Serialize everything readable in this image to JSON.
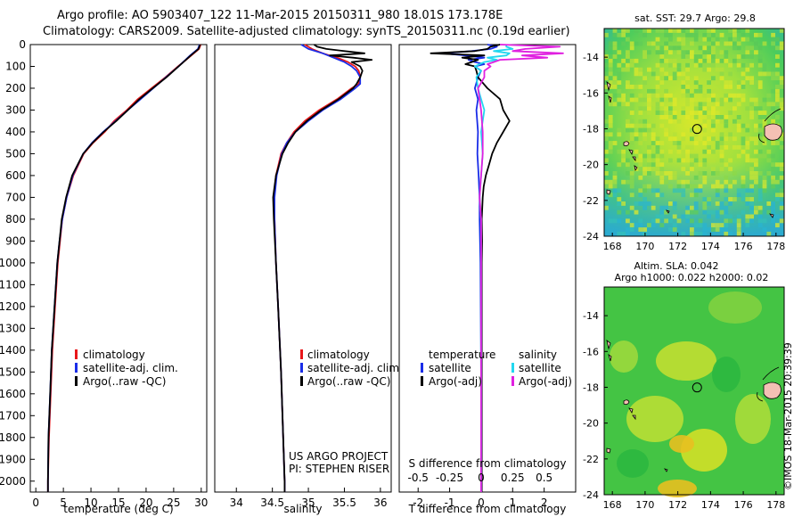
{
  "header": {
    "line1": "Argo profile: AO 5903407_122 11-Mar-2015 20150311_980 18.01S 173.178E",
    "line2": "Climatology: CARS2009. Satellite-adjusted climatology: synTS_20150311.nc (0.19d earlier)"
  },
  "colors": {
    "climatology": "#e8171a",
    "satellite": "#1a2de8",
    "argo": "#000000",
    "sat_salinity": "#22d8f0",
    "argo_salinity": "#e020e0"
  },
  "depth_axis": {
    "ylim": [
      0,
      2050
    ],
    "ticks": [
      0,
      100,
      200,
      300,
      400,
      500,
      600,
      700,
      800,
      900,
      1000,
      1100,
      1200,
      1300,
      1400,
      1500,
      1600,
      1700,
      1800,
      1900,
      2000
    ]
  },
  "chart_data": [
    {
      "type": "line",
      "name": "temperature",
      "xlabel": "temperature (deg C)",
      "xlim": [
        -1,
        31
      ],
      "xticks": [
        0,
        5,
        10,
        15,
        20,
        25,
        30
      ],
      "legend": [
        "climatology",
        "satellite-adj. clim.",
        "Argo(..raw -QC)"
      ],
      "series": [
        {
          "key": "climatology",
          "y": [
            0,
            20,
            50,
            100,
            150,
            200,
            250,
            300,
            350,
            400,
            450,
            500,
            600,
            700,
            800,
            900,
            1000,
            1200,
            1400,
            1600,
            1800,
            2000,
            2050
          ],
          "x": [
            29.9,
            29.6,
            28.2,
            25.8,
            23.5,
            21.0,
            18.5,
            16.5,
            14.2,
            12.5,
            10.4,
            8.7,
            6.8,
            5.6,
            4.8,
            4.4,
            4.0,
            3.5,
            3.0,
            2.7,
            2.4,
            2.2,
            2.2
          ]
        },
        {
          "key": "satellite",
          "y": [
            0,
            20,
            50,
            100,
            150,
            200,
            250,
            300,
            350,
            400,
            450,
            500,
            600,
            700,
            800,
            900,
            1000,
            1200,
            1400,
            1600,
            1800,
            2000,
            2050
          ],
          "x": [
            29.7,
            29.4,
            28.0,
            25.9,
            23.6,
            21.3,
            19.0,
            16.7,
            14.5,
            12.2,
            10.2,
            8.6,
            6.7,
            5.6,
            4.8,
            4.3,
            3.9,
            3.4,
            2.9,
            2.6,
            2.3,
            2.2,
            2.2
          ]
        },
        {
          "key": "argo",
          "y": [
            0,
            20,
            50,
            100,
            150,
            200,
            250,
            300,
            350,
            400,
            450,
            500,
            600,
            700,
            800,
            900,
            1000,
            1200,
            1400,
            1600,
            1800,
            2000,
            2050
          ],
          "x": [
            29.8,
            29.5,
            28.1,
            25.9,
            23.7,
            21.2,
            18.8,
            16.7,
            14.6,
            12.3,
            10.3,
            8.6,
            6.6,
            5.5,
            4.7,
            4.3,
            3.9,
            3.4,
            2.9,
            2.6,
            2.3,
            2.2,
            2.2
          ]
        }
      ]
    },
    {
      "type": "line",
      "name": "salinity",
      "xlabel": "salinity",
      "xlim": [
        33.7,
        36.15
      ],
      "xticks": [
        34,
        34.5,
        35,
        35.5,
        36
      ],
      "legend": [
        "climatology",
        "satellite-adj. clim.",
        "Argo(..raw -QC)"
      ],
      "series": [
        {
          "key": "climatology",
          "y": [
            0,
            20,
            40,
            60,
            80,
            100,
            120,
            150,
            180,
            200,
            250,
            300,
            350,
            400,
            450,
            500,
            600,
            700,
            800,
            1000,
            1200,
            1500,
            1800,
            2000,
            2050
          ],
          "x": [
            34.95,
            35.05,
            35.2,
            35.4,
            35.55,
            35.65,
            35.7,
            35.72,
            35.7,
            35.6,
            35.4,
            35.15,
            34.95,
            34.8,
            34.7,
            34.62,
            34.55,
            34.52,
            34.53,
            34.55,
            34.58,
            34.62,
            34.65,
            34.67,
            34.67
          ]
        },
        {
          "key": "satellite",
          "y": [
            0,
            20,
            40,
            60,
            80,
            100,
            120,
            150,
            180,
            200,
            250,
            300,
            350,
            400,
            450,
            500,
            600,
            700,
            800,
            1000,
            1200,
            1500,
            1800,
            2000,
            2050
          ],
          "x": [
            34.9,
            35.0,
            35.2,
            35.35,
            35.5,
            35.6,
            35.67,
            35.72,
            35.72,
            35.65,
            35.45,
            35.2,
            35.0,
            34.82,
            34.7,
            34.63,
            34.56,
            34.53,
            34.53,
            34.55,
            34.58,
            34.62,
            34.65,
            34.67,
            34.67
          ]
        },
        {
          "key": "argo",
          "y": [
            0,
            10,
            20,
            30,
            40,
            50,
            60,
            70,
            80,
            90,
            100,
            120,
            150,
            180,
            200,
            250,
            300,
            350,
            400,
            450,
            500,
            600,
            700,
            800,
            1000,
            1200,
            1500,
            1800,
            2000,
            2050
          ],
          "x": [
            35.08,
            35.12,
            35.25,
            35.5,
            35.78,
            35.3,
            35.62,
            35.88,
            35.6,
            35.66,
            35.72,
            35.75,
            35.72,
            35.67,
            35.62,
            35.42,
            35.18,
            34.98,
            34.82,
            34.72,
            34.64,
            34.55,
            34.51,
            34.52,
            34.55,
            34.58,
            34.62,
            34.65,
            34.67,
            34.67
          ]
        }
      ],
      "annotations": [
        "US ARGO PROJECT",
        "PI: STEPHEN RISER"
      ]
    },
    {
      "type": "line",
      "name": "differences",
      "xlabel": "T difference from climatology",
      "xlim": [
        -2.6,
        3.0
      ],
      "xticks": [
        -2,
        -1,
        0,
        1,
        2
      ],
      "top_axis_label": "S difference from climatology",
      "top_ticks": [
        "-0.5",
        "-0.25",
        "0",
        "0.25",
        "0.5"
      ],
      "top_tick_values": [
        -2,
        -1,
        0,
        1,
        2
      ],
      "legend_titles": [
        "temperature",
        "salinity"
      ],
      "legend": [
        "satellite",
        "Argo(-adj)",
        "satellite",
        "Argo(-adj)"
      ],
      "series": [
        {
          "key": "sat_temperature",
          "y": [
            0,
            10,
            20,
            30,
            40,
            50,
            60,
            70,
            80,
            90,
            100,
            120,
            150,
            200,
            250,
            300,
            400,
            500,
            600,
            700,
            800,
            1000,
            1500,
            2000,
            2050
          ],
          "x": [
            0.2,
            0.5,
            0.3,
            -0.3,
            -1.2,
            -0.5,
            0.1,
            -0.4,
            -0.2,
            0.1,
            -0.2,
            0.0,
            -0.1,
            -0.2,
            -0.1,
            -0.15,
            -0.1,
            -0.12,
            -0.08,
            -0.05,
            -0.05,
            -0.02,
            0.0,
            0.0,
            0.0
          ]
        },
        {
          "key": "argo_temperature",
          "y": [
            0,
            10,
            20,
            30,
            40,
            50,
            60,
            70,
            80,
            90,
            100,
            120,
            150,
            200,
            250,
            300,
            350,
            400,
            450,
            500,
            550,
            600,
            650,
            700,
            800,
            900,
            1000,
            1200,
            1500,
            2000,
            2050
          ],
          "x": [
            0.6,
            0.3,
            0.2,
            -0.2,
            -1.6,
            0.1,
            -0.6,
            -0.1,
            -0.3,
            -0.5,
            -0.2,
            -0.15,
            -0.1,
            0.2,
            0.6,
            0.7,
            0.9,
            0.7,
            0.5,
            0.35,
            0.25,
            0.15,
            0.08,
            0.05,
            0.02,
            0.03,
            0.02,
            0.02,
            0.02,
            0.02,
            0.02
          ]
        },
        {
          "key": "sat_salinity",
          "y": [
            0,
            10,
            20,
            30,
            40,
            50,
            60,
            70,
            80,
            100,
            120,
            150,
            200,
            250,
            300,
            400,
            500,
            600,
            700,
            800,
            1000,
            1500,
            2000,
            2050
          ],
          "x": [
            0.8,
            0.8,
            1.0,
            0.4,
            0.9,
            0.8,
            0.2,
            0.5,
            0.1,
            -0.2,
            0.0,
            -0.15,
            -0.1,
            0.0,
            0.1,
            0.0,
            0.05,
            0.0,
            -0.05,
            0.0,
            0.0,
            0.0,
            0.0,
            0.0
          ]
        },
        {
          "key": "argo_salinity",
          "y": [
            0,
            10,
            20,
            30,
            40,
            50,
            60,
            70,
            80,
            90,
            100,
            120,
            150,
            200,
            250,
            300,
            400,
            500,
            600,
            700,
            800,
            1000,
            1500,
            2000,
            2050
          ],
          "x": [
            0.6,
            2.5,
            1.4,
            1.0,
            2.6,
            1.3,
            2.1,
            0.6,
            0.4,
            0.2,
            0.3,
            0.1,
            0.1,
            -0.1,
            -0.05,
            0.0,
            0.05,
            0.05,
            0.0,
            -0.05,
            0.0,
            0.0,
            0.0,
            0.0,
            0.0
          ]
        }
      ]
    }
  ],
  "maps": [
    {
      "title": "sat. SST: 29.7 Argo: 29.8",
      "xlim": [
        167.5,
        178.5
      ],
      "ylim": [
        -24,
        -12.4
      ],
      "xticks": [
        168,
        170,
        172,
        174,
        176,
        178
      ],
      "yticks": [
        -14,
        -16,
        -18,
        -20,
        -22,
        -24
      ],
      "marker": {
        "lon": 173.178,
        "lat": -18.01
      }
    },
    {
      "title_line1": "Altim. SLA: 0.042",
      "title_line2": "Argo h1000: 0.022 h2000: 0.02",
      "xlim": [
        167.5,
        178.5
      ],
      "ylim": [
        -24,
        -12.4
      ],
      "xticks": [
        168,
        170,
        172,
        174,
        176,
        178
      ],
      "yticks": [
        -14,
        -16,
        -18,
        -20,
        -22,
        -24
      ],
      "marker": {
        "lon": 173.178,
        "lat": -18.01
      }
    }
  ],
  "watermark": "©IMOS 18-Mar-2015 20:39:39"
}
